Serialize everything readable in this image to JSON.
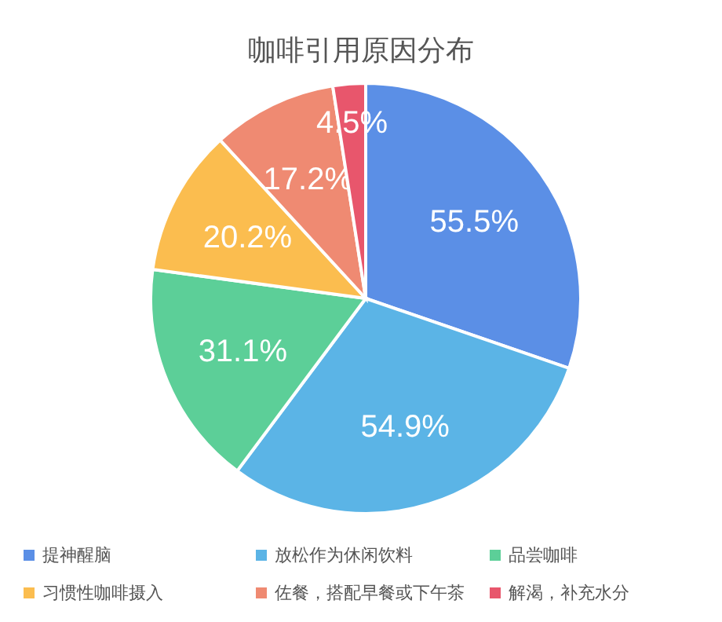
{
  "chart_data": {
    "type": "pie",
    "title": "咖啡引用原因分布",
    "categories": [
      "提神醒脑",
      "放松作为休闲饮料",
      "品尝咖啡",
      "习惯性咖啡摄入",
      "佐餐，搭配早餐或下午茶",
      "解渴，补充水分"
    ],
    "values": [
      55.5,
      54.9,
      31.1,
      20.2,
      17.2,
      4.5
    ],
    "colors": [
      "#5b8fe6",
      "#5bb4e6",
      "#5ccf98",
      "#fbbd4f",
      "#ef8a72",
      "#e8566c"
    ],
    "value_labels": [
      "55.5%",
      "54.9%",
      "31.1%",
      "20.2%",
      "17.2%",
      "4.5%"
    ],
    "legend": "bottom"
  }
}
